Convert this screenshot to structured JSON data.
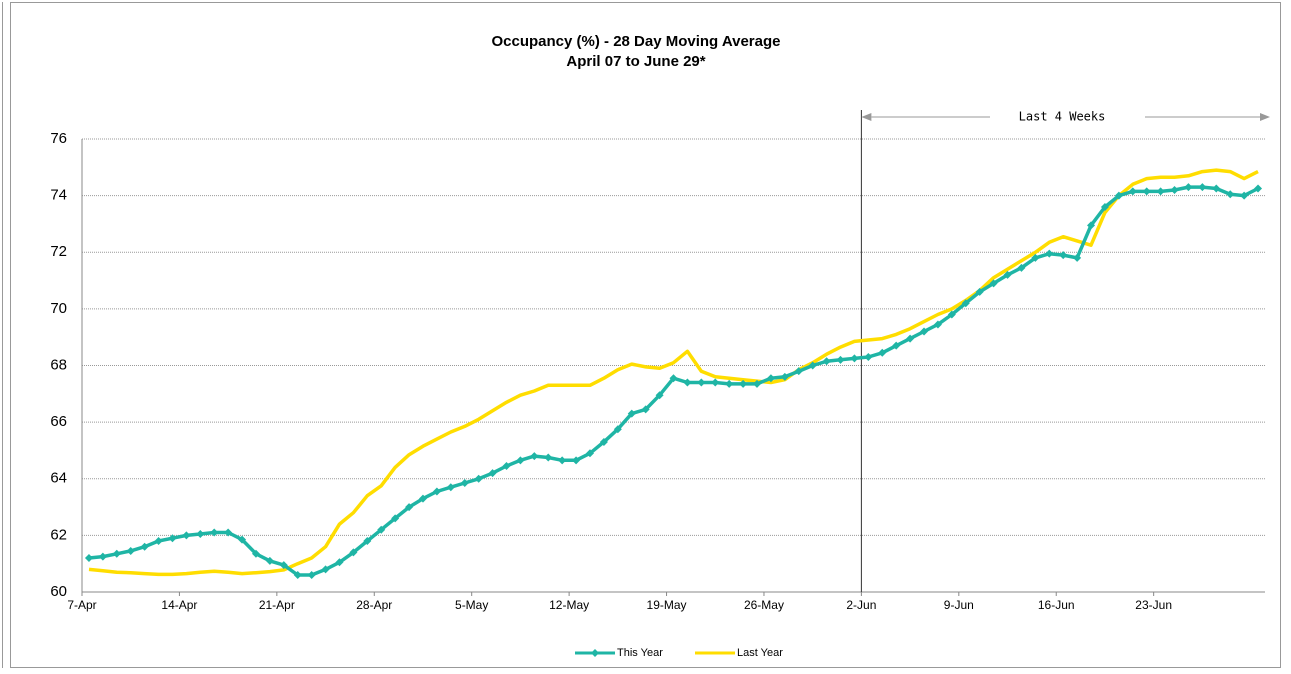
{
  "chart_data": {
    "type": "line",
    "title": "Occupancy (%) - 28 Day Moving Average",
    "subtitle": "April 07 to June 29*",
    "annotation": "Last 4 Weeks",
    "categories": [
      "7-Apr",
      null,
      null,
      null,
      null,
      null,
      null,
      "14-Apr",
      null,
      null,
      null,
      null,
      null,
      null,
      "21-Apr",
      null,
      null,
      null,
      null,
      null,
      null,
      "28-Apr",
      null,
      null,
      null,
      null,
      null,
      null,
      "5-May",
      null,
      null,
      null,
      null,
      null,
      null,
      "12-May",
      null,
      null,
      null,
      null,
      null,
      null,
      "19-May",
      null,
      null,
      null,
      null,
      null,
      null,
      "26-May",
      null,
      null,
      null,
      null,
      null,
      null,
      "2-Jun",
      null,
      null,
      null,
      null,
      null,
      null,
      "9-Jun",
      null,
      null,
      null,
      null,
      null,
      null,
      "16-Jun",
      null,
      null,
      null,
      null,
      null,
      null,
      "23-Jun",
      null,
      null,
      null,
      null,
      null,
      null,
      null
    ],
    "series": [
      {
        "name": "This Year",
        "color": "#1fb5a5",
        "marker": "diamond",
        "values": [
          61.2,
          61.25,
          61.35,
          61.45,
          61.6,
          61.8,
          61.9,
          62.0,
          62.05,
          62.1,
          62.1,
          61.85,
          61.35,
          61.1,
          60.95,
          60.6,
          60.6,
          60.8,
          61.05,
          61.4,
          61.8,
          62.2,
          62.6,
          63.0,
          63.3,
          63.55,
          63.7,
          63.85,
          64.0,
          64.2,
          64.45,
          64.65,
          64.8,
          64.75,
          64.65,
          64.65,
          64.9,
          65.3,
          65.75,
          66.3,
          66.45,
          66.95,
          67.55,
          67.4,
          67.4,
          67.4,
          67.35,
          67.35,
          67.35,
          67.55,
          67.6,
          67.8,
          68.0,
          68.15,
          68.2,
          68.25,
          68.3,
          68.45,
          68.7,
          68.95,
          69.2,
          69.45,
          69.8,
          70.2,
          70.6,
          70.9,
          71.2,
          71.45,
          71.8,
          71.95,
          71.9,
          71.8,
          72.95,
          73.6,
          74.0,
          74.15,
          74.15,
          74.15,
          74.2,
          74.3,
          74.3,
          74.25,
          74.05,
          74.0,
          74.25
        ]
      },
      {
        "name": "Last Year",
        "color": "#ffdd00",
        "marker": null,
        "values": [
          60.8,
          60.75,
          60.7,
          60.68,
          60.65,
          60.62,
          60.62,
          60.65,
          60.7,
          60.73,
          60.7,
          60.65,
          60.68,
          60.72,
          60.78,
          61.0,
          61.2,
          61.6,
          62.4,
          62.8,
          63.4,
          63.75,
          64.4,
          64.85,
          65.15,
          65.4,
          65.65,
          65.85,
          66.1,
          66.4,
          66.7,
          66.95,
          67.1,
          67.3,
          67.3,
          67.3,
          67.3,
          67.55,
          67.85,
          68.05,
          67.95,
          67.9,
          68.1,
          68.5,
          67.8,
          67.6,
          67.55,
          67.5,
          67.45,
          67.4,
          67.5,
          67.85,
          68.1,
          68.4,
          68.65,
          68.85,
          68.9,
          68.95,
          69.1,
          69.3,
          69.55,
          69.8,
          70.0,
          70.3,
          70.65,
          71.1,
          71.4,
          71.7,
          72.0,
          72.35,
          72.55,
          72.4,
          72.25,
          73.4,
          74.0,
          74.4,
          74.6,
          74.65,
          74.65,
          74.7,
          74.85,
          74.9,
          74.85,
          74.6,
          74.85
        ]
      }
    ],
    "ylim": [
      60,
      76
    ],
    "yticks": [
      60,
      62,
      64,
      66,
      68,
      70,
      72,
      74,
      76
    ],
    "grid": true,
    "legend": "bottom"
  }
}
